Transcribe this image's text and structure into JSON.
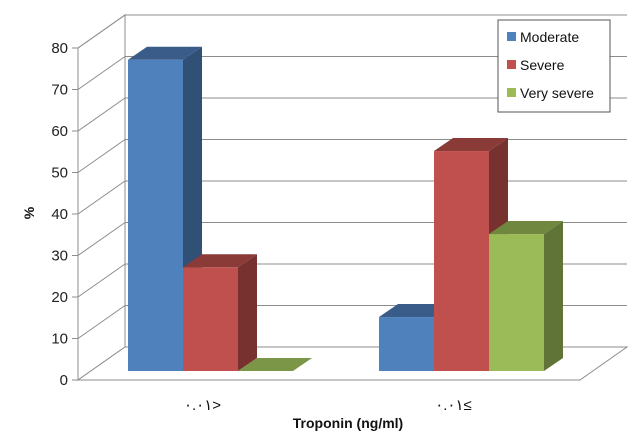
{
  "chart_data": {
    "type": "bar",
    "categories": [
      "٠.٠١>",
      "٠.٠١≤"
    ],
    "series": [
      {
        "name": "Moderate",
        "values": [
          75,
          13
        ],
        "color": "#4F81BD"
      },
      {
        "name": "Severe",
        "values": [
          25,
          53
        ],
        "color": "#C0504D"
      },
      {
        "name": "Very severe",
        "values": [
          0,
          33
        ],
        "color": "#9BBB59"
      }
    ],
    "xlabel": "Troponin (ng/ml)",
    "ylabel": "%",
    "ylim": [
      0,
      80
    ],
    "yticks": [
      0,
      10,
      20,
      30,
      40,
      50,
      60,
      70,
      80
    ],
    "grid": true,
    "legend": "top-right",
    "style": "3d"
  }
}
